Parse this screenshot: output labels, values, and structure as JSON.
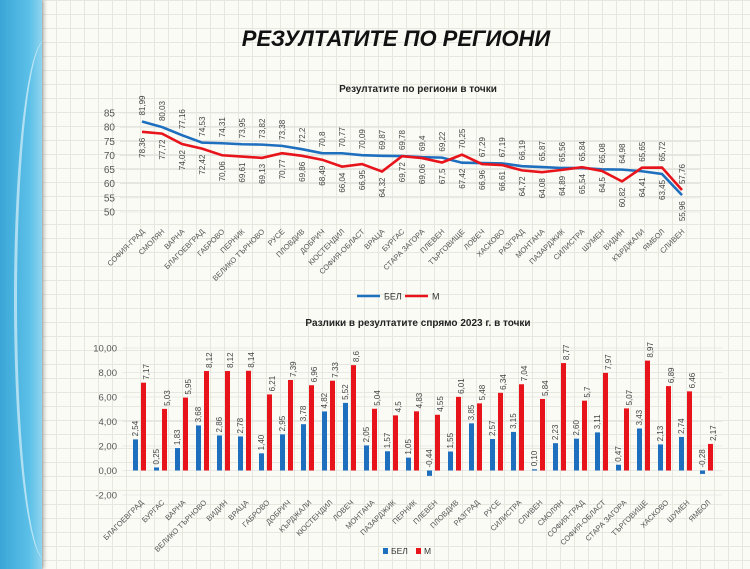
{
  "slide": {
    "title": "РЕЗУЛТАТИТЕ ПО РЕГИОНИ"
  },
  "colors": {
    "bel": "#1f6fbf",
    "m": "#e8141b",
    "accent_strip": "#3aa6d6"
  },
  "chart_data": [
    {
      "type": "line",
      "title": "Резултатите по региони в точки",
      "ylim": [
        50,
        85
      ],
      "yticks": [
        "50",
        "55",
        "60",
        "65",
        "70",
        "75",
        "80",
        "85"
      ],
      "grid": true,
      "legend": "bottom",
      "categories": [
        "СОФИЯ-ГРАД",
        "СМОЛЯН",
        "ВАРНА",
        "БЛАГОЕВГРАД",
        "ГАБРОВО",
        "ПЕРНИК",
        "ВЕЛИКО ТЪРНОВО",
        "РУСЕ",
        "ПЛОВДИВ",
        "ДОБРИЧ",
        "КЮСТЕНДИЛ",
        "СОФИЯ-ОБЛАСТ",
        "ВРАЦА",
        "БУРГАС",
        "СТАРА ЗАГОРА",
        "ПЛЕВЕН",
        "ТЪРГОВИЩЕ",
        "ЛОВЕЧ",
        "ХАСКОВО",
        "РАЗГРАД",
        "МОНТАНА",
        "ПАЗАРДЖИК",
        "СИЛИСТРА",
        "ШУМЕН",
        "ВИДИН",
        "КЪРДЖАЛИ",
        "ЯМБОЛ",
        "СЛИВЕН"
      ],
      "series": [
        {
          "name": "БЕЛ",
          "values": [
            81.99,
            80.03,
            77.16,
            74.53,
            74.31,
            73.95,
            73.82,
            73.38,
            72.2,
            70.8,
            70.77,
            70.09,
            69.87,
            69.78,
            69.4,
            69.22,
            67.42,
            67.29,
            67.19,
            66.19,
            65.87,
            65.56,
            65.54,
            65.08,
            64.98,
            64.41,
            63.45,
            55.96
          ],
          "labels": [
            "81,99",
            "80,03",
            "77,16",
            "74,53",
            "74,31",
            "73,95",
            "73,82",
            "73,38",
            "72,2",
            "70,8",
            "70,77",
            "70,09",
            "69,87",
            "69,78",
            "69,4",
            "69,22",
            "67,42",
            "67,29",
            "67,19",
            "66,19",
            "65,87",
            "65,56",
            "65,54",
            "65,08",
            "64,98",
            "64,41",
            "63,45",
            "55,96"
          ]
        },
        {
          "name": "М",
          "values": [
            78.36,
            77.72,
            74.02,
            72.42,
            70.06,
            69.61,
            69.13,
            70.77,
            69.86,
            68.49,
            66.04,
            66.95,
            64.32,
            69.72,
            69.06,
            67.5,
            70.25,
            66.96,
            66.61,
            64.72,
            64.08,
            64.89,
            65.84,
            64.5,
            60.82,
            65.65,
            65.72,
            57.76
          ],
          "labels": [
            "78,36",
            "77,72",
            "74,02",
            "72,42",
            "70,06",
            "69,61",
            "69,13",
            "70,77",
            "69,86",
            "68,49",
            "66,04",
            "66,95",
            "64,32",
            "69,72",
            "69,06",
            "67,5",
            "70,25",
            "66,96",
            "66,61",
            "64,72",
            "64,08",
            "64,89",
            "65,84",
            "64,5",
            "60,82",
            "65,65",
            "65,72",
            "57,76"
          ]
        }
      ]
    },
    {
      "type": "bar",
      "title": "Разлики в резултатите спрямо 2023 г. в точки",
      "ylim": [
        -2,
        10
      ],
      "yticks": [
        "-2,00",
        "0,00",
        "2,00",
        "4,00",
        "6,00",
        "8,00",
        "10,00"
      ],
      "grid": true,
      "legend": "bottom",
      "categories": [
        "БЛАГОЕВГРАД",
        "БУРГАС",
        "ВАРНА",
        "ВЕЛИКО ТЪРНОВО",
        "ВИДИН",
        "ВРАЦА",
        "ГАБРОВО",
        "ДОБРИЧ",
        "КЪРДЖАЛИ",
        "КЮСТЕНДИЛ",
        "ЛОВЕЧ",
        "МОНТАНА",
        "ПАЗАРДЖИК",
        "ПЕРНИК",
        "ПЛЕВЕН",
        "ПЛОВДИВ",
        "РАЗГРАД",
        "РУСЕ",
        "СИЛИСТРА",
        "СЛИВЕН",
        "СМОЛЯН",
        "СОФИЯ-ГРАД",
        "СОФИЯ-ОБЛАСТ",
        "СТАРА ЗАГОРА",
        "ТЪРГОВИЩЕ",
        "ХАСКОВО",
        "ШУМЕН",
        "ЯМБОЛ"
      ],
      "series": [
        {
          "name": "БЕЛ",
          "values": [
            2.54,
            0.25,
            1.83,
            3.68,
            2.86,
            2.78,
            1.4,
            2.95,
            3.78,
            4.82,
            5.52,
            2.05,
            1.57,
            1.05,
            -0.44,
            1.55,
            3.85,
            2.57,
            3.15,
            0.1,
            2.23,
            2.6,
            3.11,
            0.47,
            3.43,
            2.13,
            2.74,
            -0.28
          ],
          "labels": [
            "2,54",
            "0,25",
            "1,83",
            "3,68",
            "2,86",
            "2,78",
            "1,40",
            "2,95",
            "3,78",
            "4,82",
            "5,52",
            "2,05",
            "1,57",
            "1,05",
            "-0,44",
            "1,55",
            "3,85",
            "2,57",
            "3,15",
            "0,10",
            "2,23",
            "2,60",
            "3,11",
            "0,47",
            "3,43",
            "2,13",
            "2,74",
            "-0,28"
          ]
        },
        {
          "name": "М",
          "values": [
            7.17,
            5.03,
            5.95,
            8.12,
            8.12,
            8.14,
            6.21,
            7.39,
            6.96,
            7.33,
            8.6,
            5.04,
            4.5,
            4.83,
            4.55,
            6.01,
            5.48,
            6.34,
            7.04,
            5.84,
            8.77,
            5.7,
            7.97,
            5.07,
            8.97,
            6.89,
            6.46,
            2.17
          ],
          "labels": [
            "7,17",
            "5,03",
            "5,95",
            "8,12",
            "8,12",
            "8,14",
            "6,21",
            "7,39",
            "6,96",
            "7,33",
            "8,6",
            "5,04",
            "4,5",
            "4,83",
            "4,55",
            "6,01",
            "5,48",
            "6,34",
            "7,04",
            "5,84",
            "8,77",
            "5,7",
            "7,97",
            "5,07",
            "8,97",
            "6,89",
            "6,46",
            "2,17"
          ]
        }
      ]
    }
  ]
}
